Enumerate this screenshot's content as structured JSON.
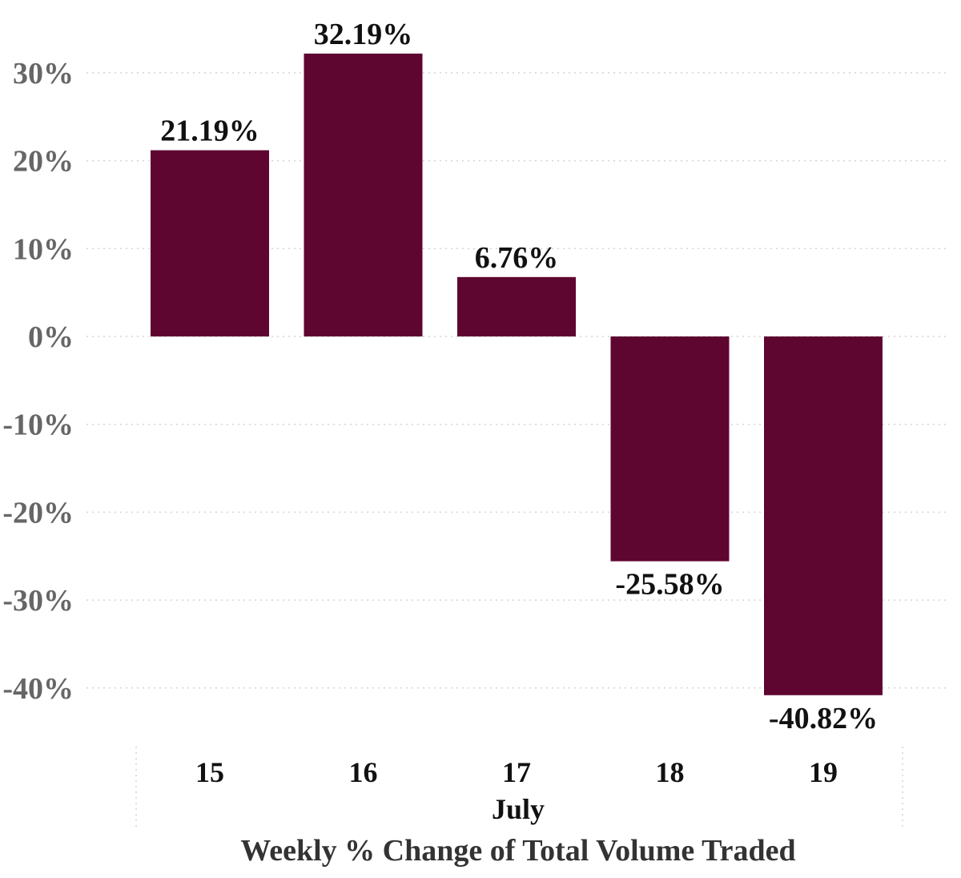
{
  "chart_data": {
    "type": "bar",
    "title": "Weekly % Change of Total Volume Traded",
    "xlabel": "",
    "ylabel": "",
    "x_group_label": "July",
    "categories": [
      "15",
      "16",
      "17",
      "18",
      "19"
    ],
    "values": [
      21.19,
      32.19,
      6.76,
      -25.58,
      -40.82
    ],
    "data_labels": [
      "21.19%",
      "32.19%",
      "6.76%",
      "-25.58%",
      "-40.82%"
    ],
    "ylim": [
      -45,
      35
    ],
    "yticks": [
      30,
      20,
      10,
      0,
      -10,
      -20,
      -30,
      -40
    ],
    "ytick_labels": [
      "30%",
      "20%",
      "10%",
      "0%",
      "-10%",
      "-20%",
      "-30%",
      "-40%"
    ],
    "grid": true,
    "legend": "none"
  },
  "colors": {
    "bar": "#5e0530",
    "grid": "#d4d4d4",
    "tick_text": "#666666",
    "label_text": "#111111",
    "title_text": "#333333"
  }
}
